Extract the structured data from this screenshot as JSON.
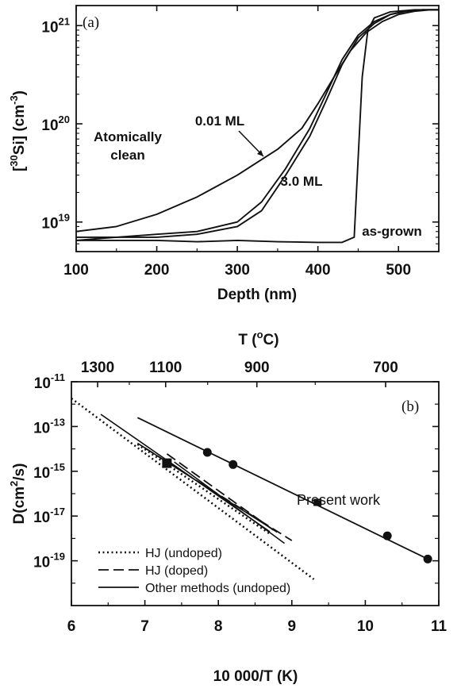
{
  "chart_data": [
    {
      "type": "line",
      "panel_label": "(a)",
      "xlabel": "Depth (nm)",
      "ylabel": "[30Si] (cm-3)",
      "xlim": [
        100,
        550
      ],
      "ylim": [
        5e+18,
        1.6e+21
      ],
      "yscale": "log",
      "x_ticks": [
        100,
        200,
        300,
        400,
        500
      ],
      "y_ticks": [
        {
          "base": "10",
          "exp": "19",
          "value": 1e+19
        },
        {
          "base": "10",
          "exp": "20",
          "value": 1e+20
        },
        {
          "base": "10",
          "exp": "21",
          "value": 1e+21
        }
      ],
      "series": [
        {
          "name": "Atomically clean",
          "x": [
            100,
            150,
            200,
            250,
            300,
            350,
            380,
            400,
            420,
            440,
            460,
            480,
            500,
            520,
            540,
            550
          ],
          "y": [
            8e+18,
            9e+18,
            1.2e+19,
            1.8e+19,
            3e+19,
            5.5e+19,
            9e+19,
            1.6e+20,
            3e+20,
            5.5e+20,
            8.5e+20,
            1.1e+21,
            1.3e+21,
            1.4e+21,
            1.45e+21,
            1.45e+21
          ]
        },
        {
          "name": "0.01 ML",
          "x": [
            100,
            150,
            200,
            250,
            300,
            330,
            360,
            390,
            410,
            430,
            450,
            470,
            490,
            510,
            530,
            550
          ],
          "y": [
            7e+18,
            7e+18,
            7.5e+18,
            8e+18,
            1e+19,
            1.6e+19,
            3.5e+19,
            9e+19,
            2e+20,
            4.5e+20,
            8e+20,
            1.1e+21,
            1.3e+21,
            1.42e+21,
            1.45e+21,
            1.45e+21
          ]
        },
        {
          "name": "3.0 ML",
          "x": [
            100,
            150,
            200,
            250,
            300,
            330,
            360,
            390,
            410,
            430,
            450,
            470,
            490,
            510,
            530,
            550
          ],
          "y": [
            6.5e+18,
            7e+18,
            7e+18,
            7.5e+18,
            9e+18,
            1.3e+19,
            3e+19,
            7.5e+19,
            1.7e+20,
            4e+20,
            7.5e+20,
            1.05e+21,
            1.3e+21,
            1.4e+21,
            1.45e+21,
            1.45e+21
          ]
        },
        {
          "name": "as-grown",
          "x": [
            100,
            150,
            200,
            250,
            300,
            350,
            400,
            430,
            445,
            455,
            462,
            470,
            490,
            520,
            550
          ],
          "y": [
            6.5e+18,
            6.5e+18,
            6.5e+18,
            6.3e+18,
            6.5e+18,
            6.3e+18,
            6.2e+18,
            6.2e+18,
            7e+18,
            3e+20,
            9e+20,
            1.2e+21,
            1.38e+21,
            1.45e+21,
            1.45e+21
          ]
        }
      ],
      "annotations": [
        {
          "text": "Atomically clean",
          "lines": [
            "Atomically",
            "clean"
          ]
        },
        {
          "text": "0.01 ML"
        },
        {
          "text": "3.0 ML"
        },
        {
          "text": "as-grown"
        }
      ]
    },
    {
      "type": "scatter",
      "panel_label": "(b)",
      "xlabel": "10 000/T (K)",
      "top_xlabel": "T (oC)",
      "ylabel": "D(cm2/s)",
      "xlim": [
        6,
        11
      ],
      "ylim": [
        1e-11,
        1e-21
      ],
      "yscale": "log",
      "x_ticks": [
        6,
        7,
        8,
        9,
        10,
        11
      ],
      "top_ticks": [
        1300,
        1100,
        900,
        700
      ],
      "y_ticks": [
        {
          "base": "10",
          "exp": "-11",
          "value": 1e-11
        },
        {
          "base": "10",
          "exp": "-13",
          "value": 1e-13
        },
        {
          "base": "10",
          "exp": "-15",
          "value": 1e-15
        },
        {
          "base": "10",
          "exp": "-17",
          "value": 1e-17
        },
        {
          "base": "10",
          "exp": "-19",
          "value": 1e-19
        }
      ],
      "present_work_points": [
        {
          "x": 7.85,
          "y": 7e-15
        },
        {
          "x": 8.2,
          "y": 2e-15
        },
        {
          "x": 9.35,
          "y": 4e-17,
          "error": [
            3e-17,
            5.5e-17
          ]
        },
        {
          "x": 10.3,
          "y": 1.3e-18
        },
        {
          "x": 10.85,
          "y": 1.2e-19
        }
      ],
      "present_work_fit": {
        "x": [
          6.9,
          10.85
        ],
        "y": [
          2.5e-13,
          1.2e-19
        ]
      },
      "other_point": {
        "x": 7.3,
        "y": 2.3e-15
      },
      "series": [
        {
          "name": "HJ (undoped)",
          "style": "dotted",
          "lines": [
            {
              "x": [
                6.0,
                9.3
              ],
              "y": [
                1.8e-12,
                1.5e-20
              ]
            },
            {
              "x": [
                6.9,
                8.7
              ],
              "y": [
                1.6e-14,
                1.6e-18
              ]
            }
          ]
        },
        {
          "name": "HJ (doped)",
          "style": "dashed",
          "lines": [
            {
              "x": [
                7.0,
                9.0
              ],
              "y": [
                1.1e-14,
                8e-19
              ]
            },
            {
              "x": [
                7.3,
                8.8
              ],
              "y": [
                6e-15,
                1.8e-18
              ]
            }
          ]
        },
        {
          "name": "Other methods (undoped)",
          "style": "solid",
          "lines": [
            {
              "x": [
                6.4,
                8.7
              ],
              "y": [
                3.5e-13,
                2e-18
              ]
            },
            {
              "x": [
                6.9,
                8.8
              ],
              "y": [
                1.8e-14,
                1.9e-18
              ]
            },
            {
              "x": [
                7.4,
                8.9
              ],
              "y": [
                2.6e-15,
                6e-19
              ]
            }
          ]
        }
      ],
      "annotation": "Present work"
    }
  ]
}
